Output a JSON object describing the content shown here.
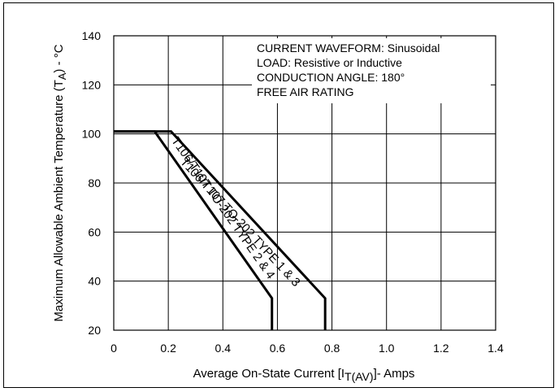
{
  "chart_data": {
    "type": "line",
    "xlabel": "Average On-State Current [I",
    "xlabel_sub": "T(AV)",
    "xlabel_suffix": "]- Amps",
    "ylabel": "Maximum Allowable Ambient Temperature (T",
    "ylabel_sub": "A",
    "ylabel_suffix": ") - °C",
    "xlim": [
      0,
      1.4
    ],
    "ylim": [
      20,
      140
    ],
    "xticks": [
      0,
      0.2,
      0.4,
      0.6,
      0.8,
      1.0,
      1.2,
      1.4
    ],
    "xtick_labels": [
      "0",
      "0.2",
      "0.4",
      "0.6",
      "0.8",
      "1.0",
      "1.2",
      "1.4"
    ],
    "yticks": [
      20,
      40,
      60,
      80,
      100,
      120,
      140
    ],
    "ytick_labels": [
      "20",
      "40",
      "60",
      "80",
      "100",
      "120",
      "140"
    ],
    "grid": true,
    "annotations": [
      "CURRENT WAVEFORM: Sinusoidal",
      "LOAD: Resistive or Inductive",
      "CONDUCTION ANGLE: 180°",
      "FREE AIR RATING"
    ],
    "series": [
      {
        "name": "T106/T107 TO-202 TYPE 1 & 3",
        "x": [
          0,
          0.21,
          0.775,
          0.775
        ],
        "y": [
          101,
          101,
          33,
          20
        ]
      },
      {
        "name": "T106/T107 TO-202 TYPE 2 & 4",
        "x": [
          0,
          0.15,
          0.58,
          0.58
        ],
        "y": [
          101,
          101,
          33,
          20
        ]
      }
    ]
  }
}
